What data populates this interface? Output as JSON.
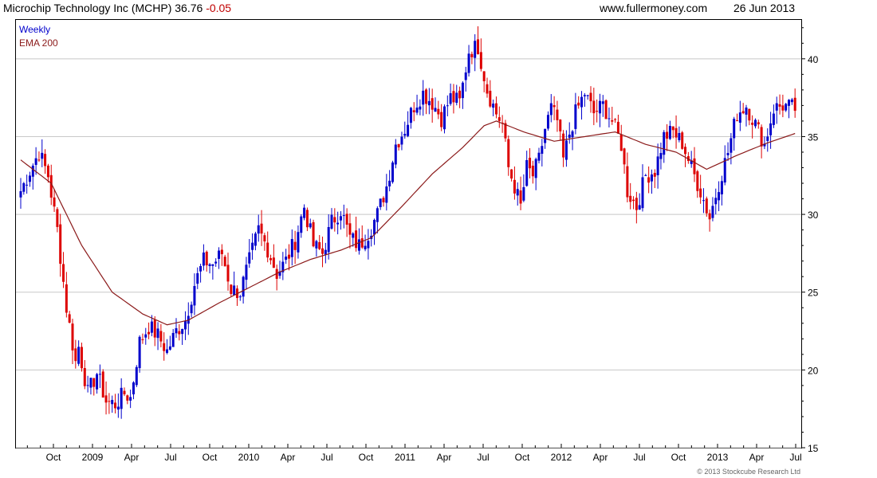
{
  "header": {
    "title": "Microchip Technology Inc (MCHP) 36.76",
    "change": "-0.05",
    "site": "www.fullermoney.com",
    "date": "26 Jun 2013"
  },
  "legend": {
    "weekly": "Weekly",
    "ema": "EMA 200"
  },
  "copyright": "© 2013 Stockcube Research Ltd",
  "colors": {
    "up": "#0000cc",
    "down": "#dd0000",
    "ema": "#8b1a1a",
    "grid": "#c8c8c8",
    "axis": "#000000"
  },
  "chart_data": {
    "type": "candlestick",
    "x_labels": [
      "Oct",
      "2009",
      "Apr",
      "Jul",
      "Oct",
      "2010",
      "Apr",
      "Jul",
      "Oct",
      "2011",
      "Apr",
      "Jul",
      "Oct",
      "2012",
      "Apr",
      "Jul",
      "Oct",
      "2013",
      "Apr",
      "Jul"
    ],
    "y_ticks": [
      15,
      20,
      25,
      30,
      35,
      40
    ],
    "ylim": [
      15,
      42.5
    ],
    "x_range_weeks": 255,
    "anchors": [
      {
        "w": 0,
        "p": 31.5
      },
      {
        "w": 3,
        "p": 32.8
      },
      {
        "w": 6,
        "p": 34.0
      },
      {
        "w": 9,
        "p": 32.5
      },
      {
        "w": 12,
        "p": 29.0
      },
      {
        "w": 15,
        "p": 24.0
      },
      {
        "w": 18,
        "p": 20.5
      },
      {
        "w": 19,
        "p": 21.5
      },
      {
        "w": 22,
        "p": 18.5
      },
      {
        "w": 25,
        "p": 19.8
      },
      {
        "w": 28,
        "p": 18.0
      },
      {
        "w": 31,
        "p": 17.8
      },
      {
        "w": 34,
        "p": 18.5
      },
      {
        "w": 36,
        "p": 18.2
      },
      {
        "w": 39,
        "p": 21.8
      },
      {
        "w": 42,
        "p": 22.8
      },
      {
        "w": 45,
        "p": 22.2
      },
      {
        "w": 48,
        "p": 21.2
      },
      {
        "w": 51,
        "p": 22.5
      },
      {
        "w": 54,
        "p": 23.2
      },
      {
        "w": 57,
        "p": 25.5
      },
      {
        "w": 60,
        "p": 27.0
      },
      {
        "w": 63,
        "p": 26.8
      },
      {
        "w": 66,
        "p": 27.5
      },
      {
        "w": 69,
        "p": 25.2
      },
      {
        "w": 72,
        "p": 25.0
      },
      {
        "w": 75,
        "p": 27.0
      },
      {
        "w": 78,
        "p": 29.0
      },
      {
        "w": 81,
        "p": 27.8
      },
      {
        "w": 84,
        "p": 26.2
      },
      {
        "w": 87,
        "p": 27.0
      },
      {
        "w": 90,
        "p": 28.3
      },
      {
        "w": 93,
        "p": 30.5
      },
      {
        "w": 96,
        "p": 28.0
      },
      {
        "w": 99,
        "p": 27.5
      },
      {
        "w": 102,
        "p": 29.5
      },
      {
        "w": 105,
        "p": 30.3
      },
      {
        "w": 108,
        "p": 28.5
      },
      {
        "w": 111,
        "p": 28.0
      },
      {
        "w": 114,
        "p": 28.8
      },
      {
        "w": 117,
        "p": 30.0
      },
      {
        "w": 120,
        "p": 31.8
      },
      {
        "w": 123,
        "p": 34.5
      },
      {
        "w": 126,
        "p": 35.5
      },
      {
        "w": 129,
        "p": 37.0
      },
      {
        "w": 132,
        "p": 37.8
      },
      {
        "w": 135,
        "p": 37.2
      },
      {
        "w": 138,
        "p": 36.2
      },
      {
        "w": 141,
        "p": 37.5
      },
      {
        "w": 144,
        "p": 37.2
      },
      {
        "w": 147,
        "p": 40.5
      },
      {
        "w": 150,
        "p": 40.8
      },
      {
        "w": 153,
        "p": 38.0
      },
      {
        "w": 156,
        "p": 36.5
      },
      {
        "w": 158,
        "p": 35.8
      },
      {
        "w": 160,
        "p": 33.0
      },
      {
        "w": 162,
        "p": 31.8
      },
      {
        "w": 164,
        "p": 30.5
      },
      {
        "w": 166,
        "p": 33.0
      },
      {
        "w": 168,
        "p": 32.5
      },
      {
        "w": 170,
        "p": 33.5
      },
      {
        "w": 172,
        "p": 35.5
      },
      {
        "w": 174,
        "p": 36.8
      },
      {
        "w": 176,
        "p": 36.0
      },
      {
        "w": 178,
        "p": 33.5
      },
      {
        "w": 180,
        "p": 35.2
      },
      {
        "w": 182,
        "p": 36.5
      },
      {
        "w": 185,
        "p": 37.8
      },
      {
        "w": 188,
        "p": 36.5
      },
      {
        "w": 191,
        "p": 37.0
      },
      {
        "w": 194,
        "p": 36.0
      },
      {
        "w": 197,
        "p": 34.5
      },
      {
        "w": 199,
        "p": 31.5
      },
      {
        "w": 202,
        "p": 30.5
      },
      {
        "w": 205,
        "p": 32.5
      },
      {
        "w": 208,
        "p": 32.8
      },
      {
        "w": 211,
        "p": 35.0
      },
      {
        "w": 214,
        "p": 35.3
      },
      {
        "w": 217,
        "p": 34.6
      },
      {
        "w": 220,
        "p": 33.0
      },
      {
        "w": 223,
        "p": 31.5
      },
      {
        "w": 226,
        "p": 29.8
      },
      {
        "w": 229,
        "p": 32.0
      },
      {
        "w": 232,
        "p": 34.0
      },
      {
        "w": 235,
        "p": 36.5
      },
      {
        "w": 238,
        "p": 37.0
      },
      {
        "w": 241,
        "p": 35.8
      },
      {
        "w": 244,
        "p": 34.5
      },
      {
        "w": 247,
        "p": 36.8
      },
      {
        "w": 250,
        "p": 37.0
      },
      {
        "w": 254,
        "p": 36.8
      }
    ],
    "ema200": [
      {
        "w": 0,
        "p": 33.5
      },
      {
        "w": 10,
        "p": 32.0
      },
      {
        "w": 20,
        "p": 28.0
      },
      {
        "w": 30,
        "p": 25.0
      },
      {
        "w": 40,
        "p": 23.6
      },
      {
        "w": 48,
        "p": 22.9
      },
      {
        "w": 55,
        "p": 23.2
      },
      {
        "w": 65,
        "p": 24.3
      },
      {
        "w": 75,
        "p": 25.3
      },
      {
        "w": 85,
        "p": 26.3
      },
      {
        "w": 95,
        "p": 27.1
      },
      {
        "w": 105,
        "p": 27.7
      },
      {
        "w": 115,
        "p": 28.5
      },
      {
        "w": 125,
        "p": 30.5
      },
      {
        "w": 135,
        "p": 32.6
      },
      {
        "w": 145,
        "p": 34.3
      },
      {
        "w": 152,
        "p": 35.7
      },
      {
        "w": 156,
        "p": 36.0
      },
      {
        "w": 165,
        "p": 35.3
      },
      {
        "w": 175,
        "p": 34.7
      },
      {
        "w": 185,
        "p": 35.0
      },
      {
        "w": 195,
        "p": 35.3
      },
      {
        "w": 205,
        "p": 34.5
      },
      {
        "w": 215,
        "p": 34.0
      },
      {
        "w": 225,
        "p": 32.9
      },
      {
        "w": 235,
        "p": 33.8
      },
      {
        "w": 245,
        "p": 34.6
      },
      {
        "w": 254,
        "p": 35.2
      }
    ]
  }
}
